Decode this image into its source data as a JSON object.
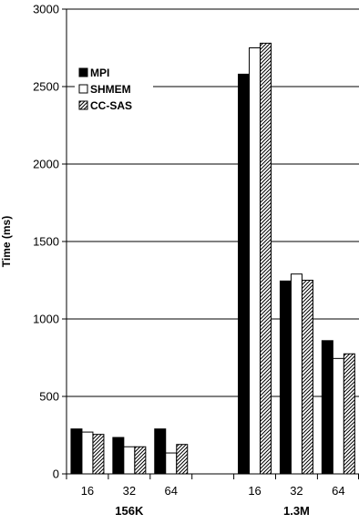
{
  "chart_data": {
    "type": "bar",
    "title": "",
    "ylabel": "Time (ms)",
    "xlabel": "",
    "ylim": [
      0,
      3000
    ],
    "yticks": [
      0,
      500,
      1000,
      1500,
      2000,
      2500,
      3000
    ],
    "grid": "horizontal",
    "legend": "top-left",
    "groups": [
      {
        "label": "156K",
        "categories": [
          "16",
          "32",
          "64"
        ]
      },
      {
        "label": "1.3M",
        "categories": [
          "16",
          "32",
          "64"
        ]
      }
    ],
    "series": [
      {
        "name": "MPI",
        "pattern": "solid-black",
        "values": [
          [
            290,
            235,
            290
          ],
          [
            2580,
            1245,
            860
          ]
        ]
      },
      {
        "name": "SHMEM",
        "pattern": "white",
        "values": [
          [
            270,
            175,
            135
          ],
          [
            2750,
            1290,
            745
          ]
        ]
      },
      {
        "name": "CC-SAS",
        "pattern": "diagonal-hatch",
        "values": [
          [
            255,
            175,
            190
          ],
          [
            2780,
            1250,
            775
          ]
        ]
      }
    ],
    "colors": {
      "fill_solid": "#000000",
      "fill_white": "#ffffff",
      "stroke": "#000000"
    }
  }
}
